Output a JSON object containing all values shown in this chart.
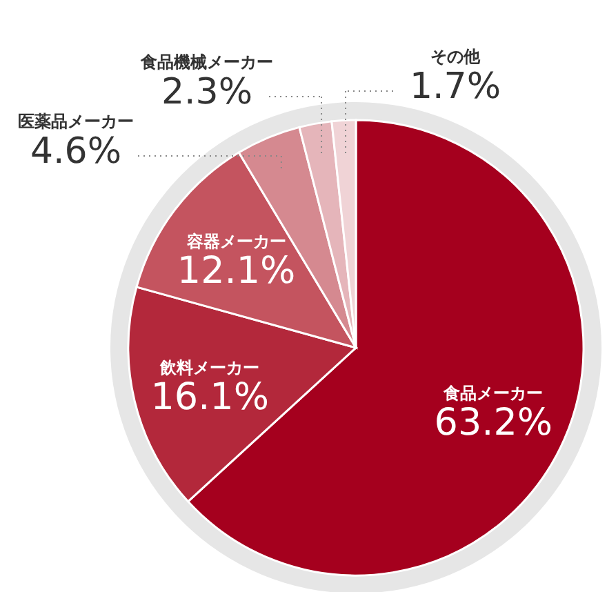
{
  "chart_data": {
    "type": "pie",
    "categories": [
      "食品メーカー",
      "飲料メーカー",
      "容器メーカー",
      "医薬品メーカー",
      "食品機械メーカー",
      "その他"
    ],
    "values": [
      63.2,
      16.1,
      12.1,
      4.6,
      2.3,
      1.7
    ],
    "value_labels": [
      "63.2%",
      "16.1%",
      "12.1%",
      "4.6%",
      "2.3%",
      "1.7%"
    ],
    "colors": [
      "#a5001e",
      "#b3283b",
      "#c4545f",
      "#d58990",
      "#e5b5ba",
      "#f0d3d6"
    ]
  }
}
